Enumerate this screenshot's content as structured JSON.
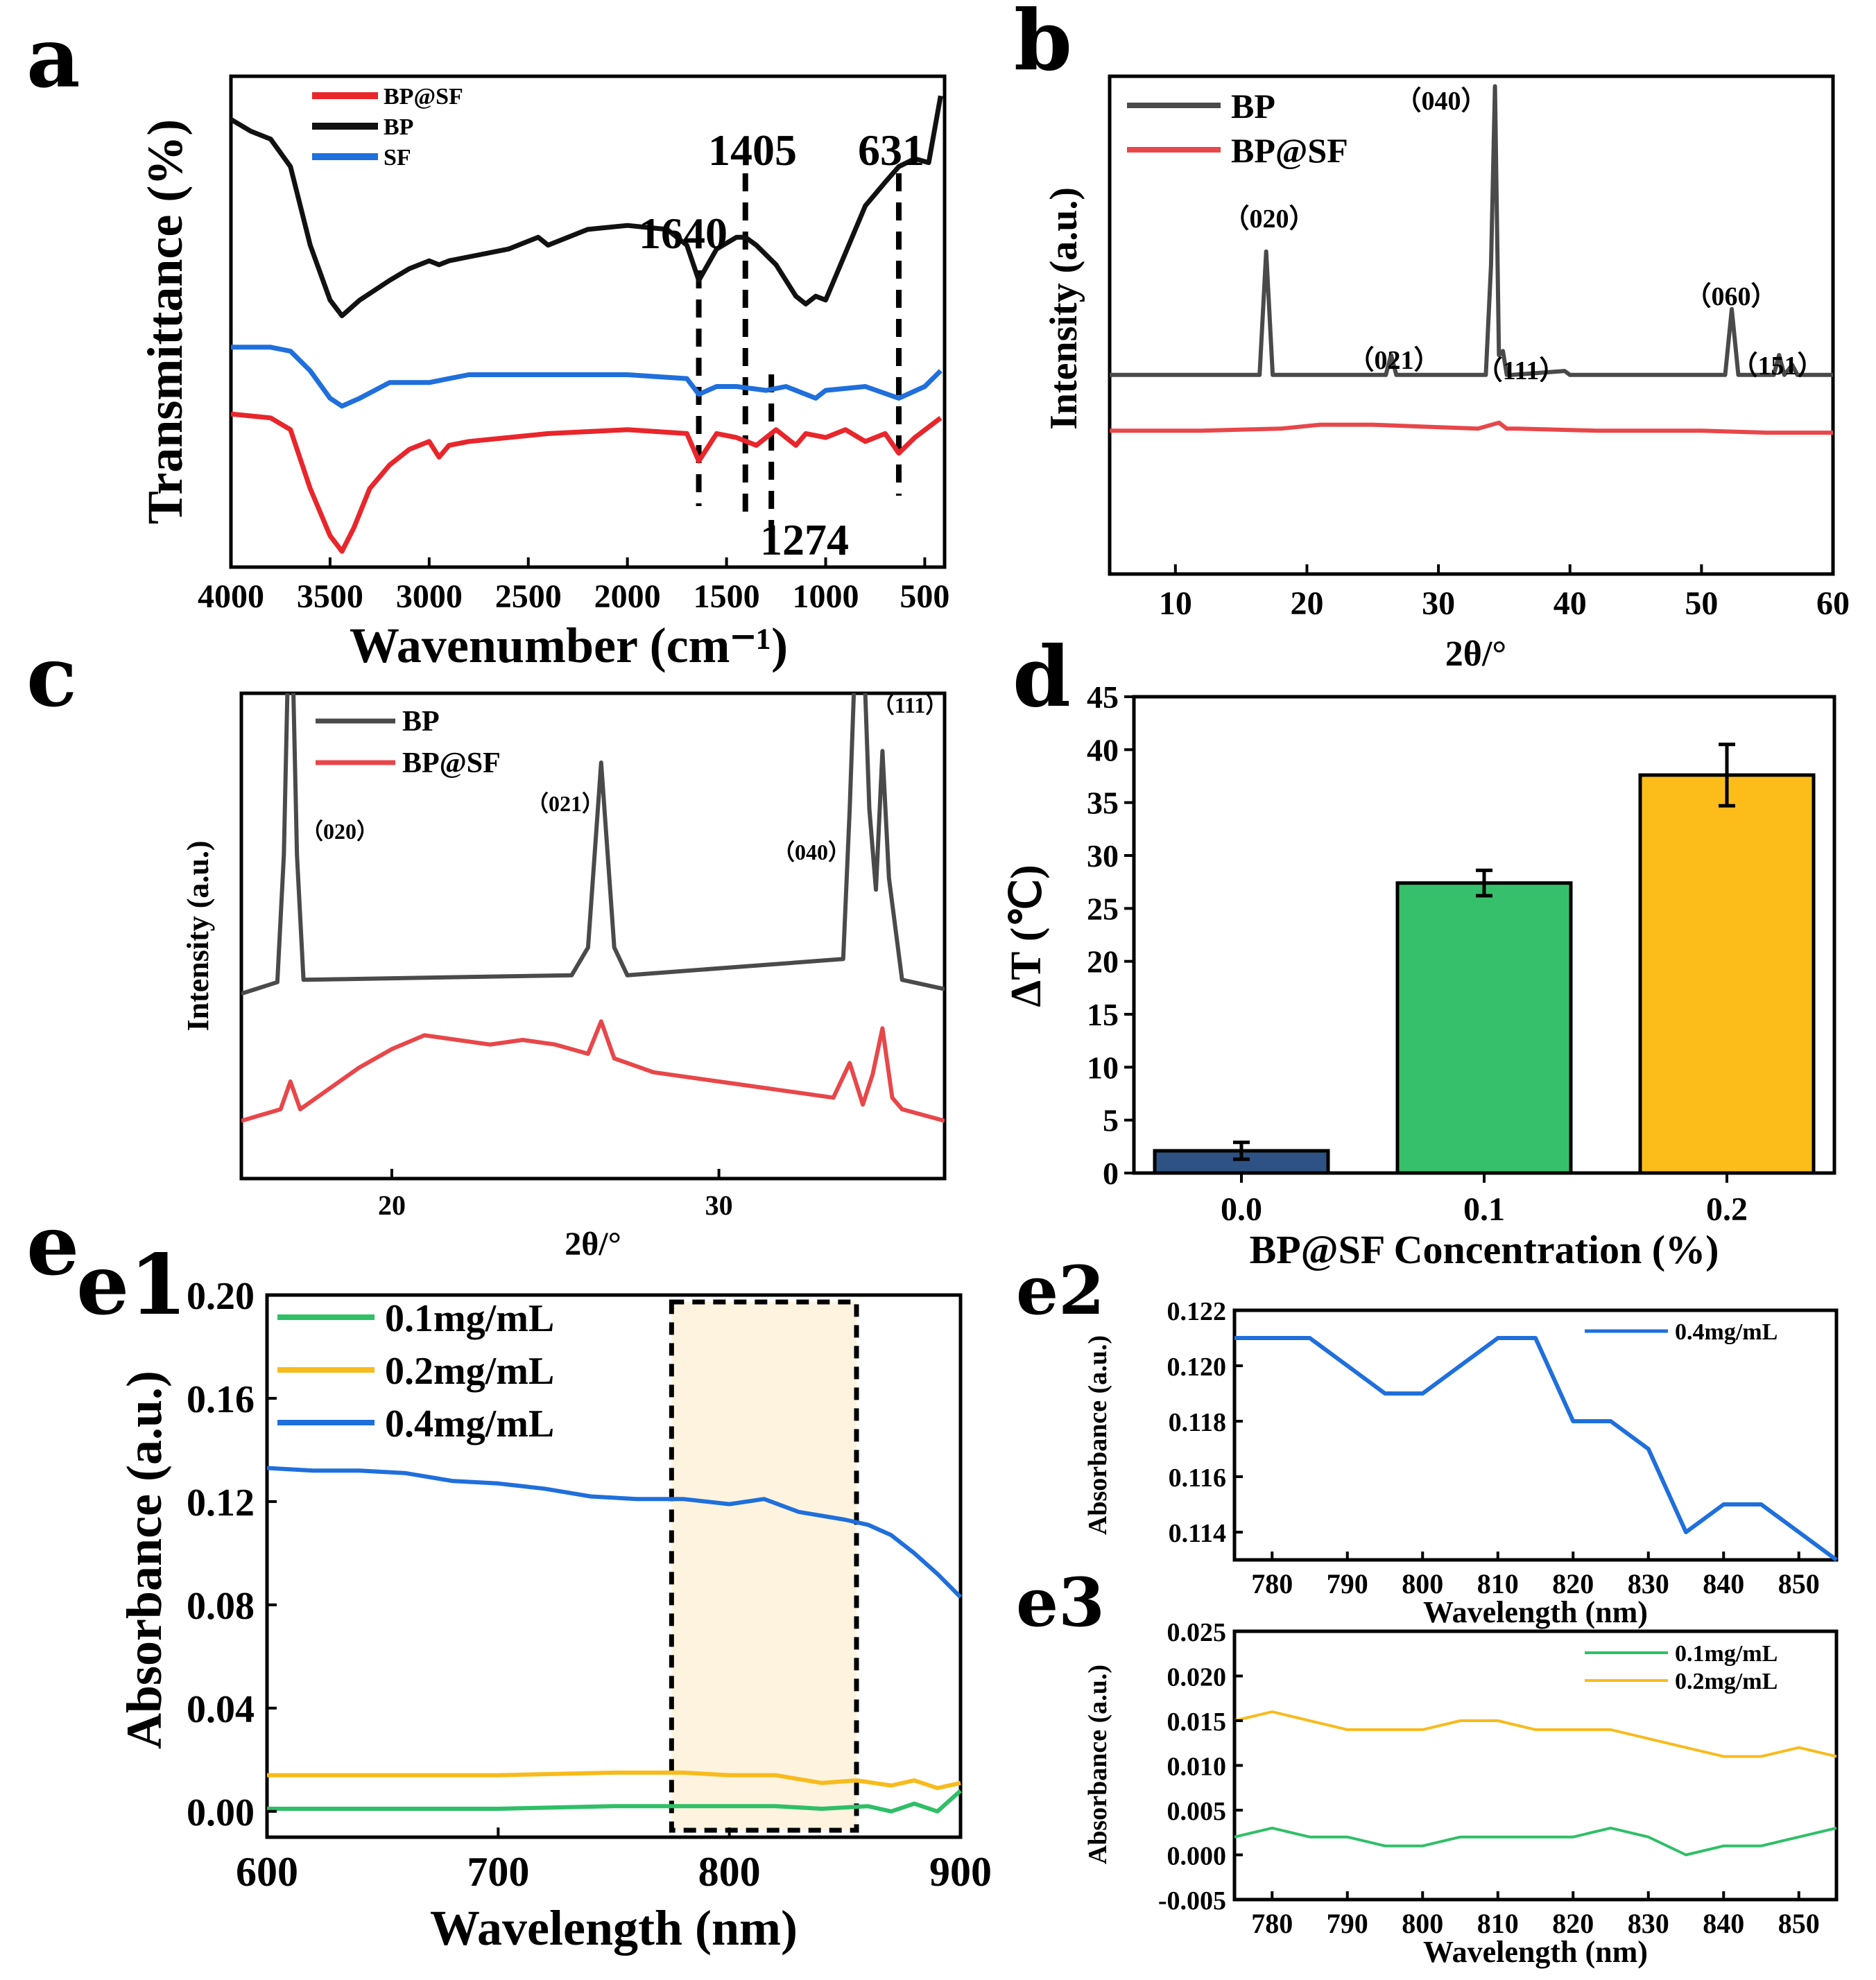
{
  "colors": {
    "red": "#e8262b",
    "black": "#111111",
    "blue": "#1f6fdc",
    "gray": "#4a4a4a",
    "gray_red": "#e8474a",
    "navy": "#2e5283",
    "green": "#37c06b",
    "amber": "#fcbd1a",
    "teal_green": "#2fbf67",
    "gold": "#f8bb1c",
    "band": "#fdf3df"
  },
  "chart_data": [
    {
      "panel": "a",
      "type": "line",
      "xlabel": "Wavenumber (cm⁻¹)",
      "ylabel": "Transmittance (%)",
      "xlim": [
        4000,
        400
      ],
      "yticks_shown": false,
      "xticks": [
        "4000",
        "3500",
        "3000",
        "2500",
        "2000",
        "1500",
        "1000",
        "500"
      ],
      "legend": [
        "BP@SF",
        "BP",
        "SF"
      ],
      "series": [
        {
          "name": "BP",
          "x": [
            4000,
            3900,
            3800,
            3700,
            3600,
            3500,
            3440,
            3350,
            3200,
            3100,
            3000,
            2950,
            2900,
            2800,
            2600,
            2450,
            2400,
            2300,
            2200,
            2000,
            1800,
            1700,
            1640,
            1550,
            1450,
            1405,
            1350,
            1250,
            1150,
            1100,
            1050,
            1000,
            900,
            800,
            700,
            631,
            550,
            480,
            420
          ],
          "y": [
            74,
            71,
            69,
            62,
            42,
            28,
            24,
            28,
            33,
            36,
            38,
            37,
            38,
            39,
            41,
            44,
            42,
            44,
            46,
            47,
            46,
            42,
            33,
            41,
            44,
            44,
            42,
            37,
            29,
            27,
            29,
            28,
            40,
            52,
            58,
            62,
            64,
            63,
            80
          ]
        },
        {
          "name": "SF",
          "x": [
            4000,
            3800,
            3700,
            3600,
            3500,
            3440,
            3350,
            3200,
            3000,
            2900,
            2800,
            2600,
            2400,
            2000,
            1700,
            1640,
            1550,
            1450,
            1300,
            1200,
            1050,
            1000,
            800,
            631,
            500,
            420
          ],
          "y": [
            16,
            16,
            15,
            10,
            3,
            1,
            3,
            7,
            7,
            8,
            9,
            9,
            9,
            9,
            8,
            4,
            6,
            6,
            5,
            6,
            3,
            5,
            6,
            3,
            6,
            10
          ]
        },
        {
          "name": "BP@SF",
          "x": [
            4000,
            3800,
            3700,
            3600,
            3500,
            3440,
            3380,
            3300,
            3200,
            3100,
            3000,
            2950,
            2900,
            2800,
            2600,
            2400,
            2000,
            1700,
            1640,
            1550,
            1450,
            1350,
            1250,
            1150,
            1100,
            1000,
            900,
            800,
            700,
            631,
            550,
            420
          ],
          "y": [
            -1,
            -2,
            -5,
            -20,
            -32,
            -36,
            -30,
            -20,
            -14,
            -10,
            -8,
            -12,
            -9,
            -8,
            -7,
            -6,
            -5,
            -6,
            -13,
            -6,
            -7,
            -9,
            -5,
            -9,
            -6,
            -7,
            -5,
            -8,
            -6,
            -11,
            -7,
            -2
          ]
        }
      ],
      "annotations": [
        {
          "text": "1640",
          "x": 1640
        },
        {
          "text": "1405",
          "x": 1405
        },
        {
          "text": "631",
          "x": 631
        },
        {
          "text": "1274",
          "x": 1274
        }
      ]
    },
    {
      "panel": "b",
      "type": "line",
      "xlabel": "2θ/°",
      "ylabel": "Intensity (a.u.)",
      "xlim": [
        5,
        60
      ],
      "xticks": [
        "10",
        "20",
        "30",
        "40",
        "50",
        "60"
      ],
      "legend": [
        "BP",
        "BP@SF"
      ],
      "series": [
        {
          "name": "BP",
          "x": [
            5,
            16.4,
            16.9,
            17.4,
            26,
            26.4,
            26.8,
            33.6,
            34.0,
            34.3,
            34.6,
            34.9,
            35.2,
            35.6,
            39.6,
            40,
            40.4,
            51.8,
            52.3,
            52.8,
            55.5,
            55.9,
            56.3,
            56.9,
            57.3,
            60
          ],
          "y": [
            0,
            0,
            62,
            0,
            0,
            10,
            0,
            0,
            55,
            145,
            10,
            12,
            0,
            0,
            2,
            0,
            0,
            0,
            33,
            0,
            0,
            10,
            0,
            5,
            0,
            0
          ]
        },
        {
          "name": "BP@SF",
          "x": [
            5,
            12,
            18,
            21,
            25,
            29,
            33,
            34.6,
            35.2,
            36,
            42,
            50,
            55,
            60
          ],
          "y": [
            -28,
            -28,
            -27,
            -25,
            -25,
            -26,
            -27,
            -24,
            -27,
            -27,
            -28,
            -28,
            -29,
            -29
          ]
        }
      ],
      "peak_labels": [
        {
          "text": "（040）",
          "x": 34.2
        },
        {
          "text": "（020）",
          "x": 16.9
        },
        {
          "text": "（021）",
          "x": 26.4
        },
        {
          "text": "（111）",
          "x": 36.9
        },
        {
          "text": "（060）",
          "x": 52.3
        },
        {
          "text": "（151）",
          "x": 57.4
        }
      ]
    },
    {
      "panel": "c",
      "type": "line",
      "xlabel": "2θ/°",
      "ylabel": "Intensity (a.u.)",
      "xlim": [
        15.4,
        36.9
      ],
      "xticks": [
        "20",
        "30"
      ],
      "legend": [
        "BP",
        "BP@SF"
      ],
      "series": [
        {
          "name": "BP",
          "x": [
            15.4,
            16.5,
            16.7,
            16.9,
            17.1,
            17.3,
            25.5,
            26.0,
            26.4,
            26.8,
            27.2,
            33.8,
            34.0,
            34.3,
            34.6,
            34.8,
            35.0,
            35.2,
            35.6,
            36.9
          ],
          "y": [
            60,
            65,
            120,
            250,
            120,
            66,
            68,
            80,
            160,
            80,
            68,
            75,
            140,
            260,
            140,
            105,
            165,
            110,
            66,
            62
          ]
        },
        {
          "name": "BP@SF",
          "x": [
            15.4,
            16.6,
            16.9,
            17.2,
            18,
            19,
            20,
            21,
            22,
            23,
            24,
            25,
            26,
            26.4,
            26.8,
            28,
            30,
            32,
            33.5,
            34,
            34.4,
            34.7,
            35,
            35.3,
            35.6,
            36.9
          ],
          "y": [
            5,
            10,
            22,
            10,
            18,
            28,
            36,
            42,
            40,
            38,
            40,
            38,
            34,
            48,
            32,
            26,
            22,
            18,
            15,
            30,
            12,
            25,
            45,
            15,
            10,
            5
          ]
        }
      ],
      "peak_labels": [
        {
          "text": "（020）",
          "x": 17.1
        },
        {
          "text": "（021）",
          "x": 25.0
        },
        {
          "text": "（040）",
          "x": 32.3
        },
        {
          "text": "（111）",
          "x": 35.3
        }
      ]
    },
    {
      "panel": "d",
      "type": "bar",
      "xlabel": "BP@SF Concentration (%)",
      "ylabel": "ΔT (℃)",
      "ylim": [
        0,
        45
      ],
      "yticks": [
        "0",
        "5",
        "10",
        "15",
        "20",
        "25",
        "30",
        "35",
        "40",
        "45"
      ],
      "categories": [
        "0.0",
        "0.1",
        "0.2"
      ],
      "values": [
        2.1,
        27.4,
        37.6
      ],
      "errors": [
        0.8,
        1.2,
        2.9
      ]
    },
    {
      "panel": "e1",
      "type": "line",
      "xlabel": "Wavelength (nm)",
      "ylabel": "Absorbance (a.u.)",
      "xlim": [
        600,
        900
      ],
      "ylim": [
        -0.01,
        0.2
      ],
      "xticks": [
        "600",
        "700",
        "800",
        "900"
      ],
      "yticks": [
        "0.00",
        "0.04",
        "0.08",
        "0.12",
        "0.16",
        "0.20"
      ],
      "highlight_range": [
        775,
        855
      ],
      "legend": [
        "0.1mg/mL",
        "0.2mg/mL",
        "0.4mg/mL"
      ],
      "series": [
        {
          "name": "0.1mg/mL",
          "x": [
            600,
            650,
            700,
            750,
            780,
            800,
            820,
            840,
            860,
            870,
            880,
            890,
            895,
            900
          ],
          "y": [
            0.001,
            0.001,
            0.001,
            0.002,
            0.002,
            0.002,
            0.002,
            0.001,
            0.002,
            0.0,
            0.003,
            0.0,
            0.004,
            0.008
          ]
        },
        {
          "name": "0.2mg/mL",
          "x": [
            600,
            650,
            700,
            750,
            780,
            800,
            820,
            840,
            855,
            870,
            880,
            890,
            900
          ],
          "y": [
            0.014,
            0.014,
            0.014,
            0.015,
            0.015,
            0.014,
            0.014,
            0.011,
            0.012,
            0.01,
            0.012,
            0.009,
            0.011
          ]
        },
        {
          "name": "0.4mg/mL",
          "x": [
            600,
            620,
            640,
            660,
            680,
            700,
            720,
            740,
            760,
            780,
            800,
            815,
            830,
            850,
            860,
            870,
            880,
            890,
            900
          ],
          "y": [
            0.133,
            0.132,
            0.132,
            0.131,
            0.128,
            0.127,
            0.125,
            0.122,
            0.121,
            0.121,
            0.119,
            0.121,
            0.116,
            0.113,
            0.111,
            0.107,
            0.1,
            0.092,
            0.083
          ]
        }
      ]
    },
    {
      "panel": "e2",
      "type": "line",
      "xlabel": "Wavelength (nm)",
      "ylabel": "Absorbance (a.u.)",
      "xlim": [
        775,
        855
      ],
      "ylim": [
        0.113,
        0.122
      ],
      "xticks": [
        "780",
        "790",
        "800",
        "810",
        "820",
        "830",
        "840",
        "850"
      ],
      "yticks": [
        "0.114",
        "0.116",
        "0.118",
        "0.120",
        "0.122"
      ],
      "legend": [
        "0.4mg/mL"
      ],
      "series": [
        {
          "name": "0.4mg/mL",
          "x": [
            775,
            780,
            785,
            790,
            795,
            800,
            805,
            810,
            815,
            820,
            825,
            830,
            835,
            840,
            845,
            850,
            855
          ],
          "y": [
            0.121,
            0.121,
            0.121,
            0.12,
            0.119,
            0.119,
            0.12,
            0.121,
            0.121,
            0.118,
            0.118,
            0.117,
            0.114,
            0.115,
            0.115,
            0.114,
            0.113
          ]
        }
      ]
    },
    {
      "panel": "e3",
      "type": "line",
      "xlabel": "Wavelength (nm)",
      "ylabel": "Absorbance (a.u.)",
      "xlim": [
        775,
        855
      ],
      "ylim": [
        -0.005,
        0.025
      ],
      "xticks": [
        "780",
        "790",
        "800",
        "810",
        "820",
        "830",
        "840",
        "850"
      ],
      "yticks": [
        "-0.005",
        "0.000",
        "0.005",
        "0.010",
        "0.015",
        "0.020",
        "0.025"
      ],
      "legend": [
        "0.1mg/mL",
        "0.2mg/mL"
      ],
      "series": [
        {
          "name": "0.1mg/mL",
          "x": [
            775,
            780,
            785,
            790,
            795,
            800,
            805,
            810,
            815,
            820,
            825,
            830,
            835,
            840,
            845,
            850,
            855
          ],
          "y": [
            0.002,
            0.003,
            0.002,
            0.002,
            0.001,
            0.001,
            0.002,
            0.002,
            0.002,
            0.002,
            0.003,
            0.002,
            0.0,
            0.001,
            0.001,
            0.002,
            0.003
          ]
        },
        {
          "name": "0.2mg/mL",
          "x": [
            775,
            780,
            785,
            790,
            795,
            800,
            805,
            810,
            815,
            820,
            825,
            830,
            835,
            840,
            845,
            850,
            855
          ],
          "y": [
            0.015,
            0.016,
            0.015,
            0.014,
            0.014,
            0.014,
            0.015,
            0.015,
            0.014,
            0.014,
            0.014,
            0.013,
            0.012,
            0.011,
            0.011,
            0.012,
            0.011
          ]
        }
      ]
    }
  ],
  "panel_letters": {
    "a": "a",
    "b": "b",
    "c": "c",
    "d": "d",
    "e": "e",
    "e1": "e1",
    "e2": "e2",
    "e3": "e3"
  }
}
